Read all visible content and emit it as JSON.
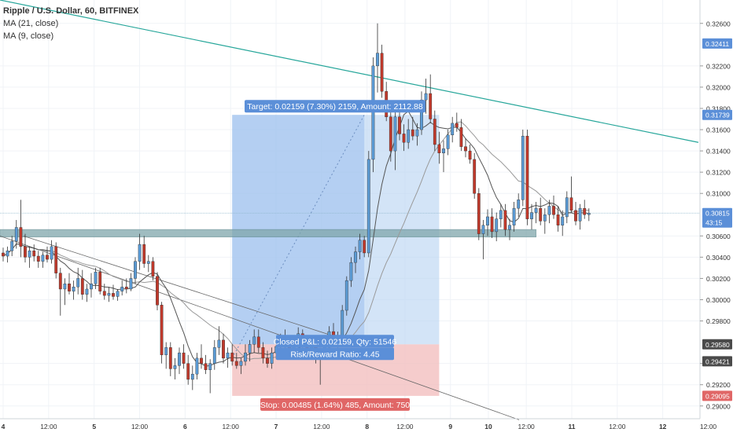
{
  "legend": {
    "symbol": "Ripple / U.S. Dollar, 60, BITFINEX",
    "ma21": "MA (21, close)",
    "ma9": "MA (9, close)"
  },
  "colors": {
    "up": "#5b9bd5",
    "down": "#c0392b",
    "wick": "#333333",
    "ma_light": "#9a9a9a",
    "ma_dark": "#555555",
    "trendline": "#26a69a",
    "zone": "#7fa6ab",
    "profit_fill": "#bcd5f2",
    "profit_fill_dark": "#8fb6ea",
    "loss_fill": "#f2bfbf",
    "axis_text": "#333333",
    "grid": "#f0f3f7"
  },
  "position": {
    "target_label": "Target: 0.02159 (7.30%) 2159, Amount: 2112.88",
    "closed_label": "Closed P&L: 0.02159, Qty: 51546",
    "rr_label": "Risk/Reward Ratio: 4.45",
    "stop_label": "Stop: 0.00485 (1.64%) 485, Amount: 750",
    "entry": 0.2958,
    "target": 0.31739,
    "stop": 0.29095
  },
  "chart_data": {
    "type": "candlestick",
    "title": "Ripple / U.S. Dollar, 60, BITFINEX",
    "ylim": [
      0.2888,
      0.3282
    ],
    "y_ticks": [
      "0.32600",
      "0.32200",
      "0.32000",
      "0.31800",
      "0.31600",
      "0.31400",
      "0.31200",
      "0.31000",
      "0.30600",
      "0.30400",
      "0.30200",
      "0.30000",
      "0.29800",
      "0.29400",
      "0.29200",
      "0.29000"
    ],
    "x_ticks": [
      "4",
      "12:00",
      "5",
      "12:00",
      "6",
      "12:00",
      "7",
      "12:00",
      "8",
      "12:00",
      "9",
      "10",
      "12:00",
      "11",
      "12:00",
      "12",
      "12:00"
    ],
    "price_badges": [
      {
        "value": "0.32411",
        "kind": "blue"
      },
      {
        "value": "0.31739",
        "kind": "blue"
      },
      {
        "value": "0.30815",
        "kind": "blue"
      },
      {
        "value": "43:15",
        "kind": "blue-sub"
      },
      {
        "value": "0.29580",
        "kind": "gray"
      },
      {
        "value": "0.29421",
        "kind": "gray"
      },
      {
        "value": "0.29095",
        "kind": "red"
      }
    ],
    "current_price": 0.30815,
    "series": [
      {
        "name": "MA (21, close)"
      },
      {
        "name": "MA (9, close)"
      }
    ],
    "candles": [
      [
        0.3044,
        0.3049,
        0.3036,
        0.3041
      ],
      [
        0.3041,
        0.305,
        0.3035,
        0.3046
      ],
      [
        0.3046,
        0.306,
        0.3041,
        0.3055
      ],
      [
        0.3055,
        0.3075,
        0.3048,
        0.3068
      ],
      [
        0.3068,
        0.3094,
        0.304,
        0.305
      ],
      [
        0.305,
        0.3062,
        0.3035,
        0.304
      ],
      [
        0.304,
        0.305,
        0.303,
        0.3046
      ],
      [
        0.3046,
        0.3052,
        0.3036,
        0.3041
      ],
      [
        0.3041,
        0.3046,
        0.303,
        0.3036
      ],
      [
        0.3036,
        0.3045,
        0.303,
        0.3042
      ],
      [
        0.3042,
        0.305,
        0.3035,
        0.3038
      ],
      [
        0.3038,
        0.3056,
        0.3034,
        0.305
      ],
      [
        0.305,
        0.3054,
        0.302,
        0.3025
      ],
      [
        0.3025,
        0.303,
        0.2985,
        0.301
      ],
      [
        0.301,
        0.302,
        0.2995,
        0.3015
      ],
      [
        0.3015,
        0.3025,
        0.3005,
        0.3008
      ],
      [
        0.3008,
        0.3018,
        0.3,
        0.3012
      ],
      [
        0.3012,
        0.303,
        0.3005,
        0.302
      ],
      [
        0.302,
        0.3028,
        0.3,
        0.3005
      ],
      [
        0.3005,
        0.3015,
        0.2998,
        0.301
      ],
      [
        0.301,
        0.3025,
        0.3002,
        0.3015
      ],
      [
        0.3015,
        0.303,
        0.301,
        0.3026
      ],
      [
        0.3026,
        0.303,
        0.3005,
        0.3008
      ],
      [
        0.3008,
        0.3015,
        0.3,
        0.3004
      ],
      [
        0.3004,
        0.3012,
        0.2998,
        0.3006
      ],
      [
        0.3006,
        0.3014,
        0.3,
        0.3003
      ],
      [
        0.3003,
        0.301,
        0.2999,
        0.3008
      ],
      [
        0.3008,
        0.3018,
        0.3004,
        0.3012
      ],
      [
        0.3012,
        0.302,
        0.3006,
        0.301
      ],
      [
        0.301,
        0.3025,
        0.3008,
        0.302
      ],
      [
        0.302,
        0.304,
        0.3015,
        0.3036
      ],
      [
        0.3036,
        0.3062,
        0.3028,
        0.3052
      ],
      [
        0.3052,
        0.306,
        0.303,
        0.3034
      ],
      [
        0.3034,
        0.3042,
        0.3026,
        0.3036
      ],
      [
        0.3036,
        0.304,
        0.3018,
        0.3022
      ],
      [
        0.3022,
        0.3026,
        0.299,
        0.2995
      ],
      [
        0.2995,
        0.2998,
        0.294,
        0.2948
      ],
      [
        0.2948,
        0.296,
        0.2935,
        0.2955
      ],
      [
        0.2955,
        0.296,
        0.2928,
        0.2935
      ],
      [
        0.2935,
        0.2945,
        0.2925,
        0.2938
      ],
      [
        0.2938,
        0.2955,
        0.293,
        0.295
      ],
      [
        0.295,
        0.2958,
        0.2935,
        0.294
      ],
      [
        0.294,
        0.2948,
        0.292,
        0.2925
      ],
      [
        0.2925,
        0.2938,
        0.2915,
        0.293
      ],
      [
        0.293,
        0.295,
        0.2925,
        0.2945
      ],
      [
        0.2945,
        0.2958,
        0.2935,
        0.294
      ],
      [
        0.294,
        0.2948,
        0.293,
        0.2934
      ],
      [
        0.2934,
        0.2944,
        0.2912,
        0.294
      ],
      [
        0.294,
        0.2962,
        0.2934,
        0.2955
      ],
      [
        0.2955,
        0.2975,
        0.2948,
        0.2962
      ],
      [
        0.2962,
        0.2968,
        0.294,
        0.2945
      ],
      [
        0.2945,
        0.2955,
        0.2936,
        0.295
      ],
      [
        0.295,
        0.2958,
        0.2938,
        0.2942
      ],
      [
        0.2942,
        0.295,
        0.2935,
        0.2938
      ],
      [
        0.2938,
        0.2945,
        0.293,
        0.2942
      ],
      [
        0.2942,
        0.2958,
        0.2938,
        0.295
      ],
      [
        0.295,
        0.2962,
        0.2942,
        0.2958
      ],
      [
        0.2958,
        0.2972,
        0.295,
        0.2965
      ],
      [
        0.2965,
        0.2972,
        0.295,
        0.2955
      ],
      [
        0.2955,
        0.296,
        0.294,
        0.2945
      ],
      [
        0.2945,
        0.2952,
        0.2936,
        0.294
      ],
      [
        0.294,
        0.2955,
        0.2935,
        0.295
      ],
      [
        0.295,
        0.2962,
        0.2944,
        0.2956
      ],
      [
        0.2956,
        0.2968,
        0.295,
        0.2962
      ],
      [
        0.2962,
        0.2972,
        0.2952,
        0.2958
      ],
      [
        0.2958,
        0.2966,
        0.2948,
        0.2952
      ],
      [
        0.2952,
        0.2964,
        0.2946,
        0.296
      ],
      [
        0.296,
        0.2974,
        0.2955,
        0.2968
      ],
      [
        0.2968,
        0.2972,
        0.2955,
        0.296
      ],
      [
        0.296,
        0.2966,
        0.2948,
        0.2952
      ],
      [
        0.2952,
        0.296,
        0.2944,
        0.2956
      ],
      [
        0.2956,
        0.2962,
        0.294,
        0.2945
      ],
      [
        0.2945,
        0.2955,
        0.292,
        0.295
      ],
      [
        0.295,
        0.2965,
        0.2945,
        0.2962
      ],
      [
        0.2962,
        0.2975,
        0.2955,
        0.297
      ],
      [
        0.297,
        0.2978,
        0.2958,
        0.2962
      ],
      [
        0.2962,
        0.297,
        0.2955,
        0.2966
      ],
      [
        0.2966,
        0.2995,
        0.296,
        0.299
      ],
      [
        0.299,
        0.3022,
        0.2985,
        0.3018
      ],
      [
        0.3018,
        0.304,
        0.3012,
        0.3035
      ],
      [
        0.3035,
        0.305,
        0.3025,
        0.3045
      ],
      [
        0.3045,
        0.3062,
        0.3038,
        0.3056
      ],
      [
        0.3056,
        0.306,
        0.304,
        0.3044
      ],
      [
        0.3044,
        0.314,
        0.304,
        0.3132
      ],
      [
        0.3132,
        0.3228,
        0.312,
        0.322
      ],
      [
        0.322,
        0.326,
        0.3195,
        0.3232
      ],
      [
        0.3232,
        0.324,
        0.319,
        0.3196
      ],
      [
        0.3196,
        0.3205,
        0.3168,
        0.3172
      ],
      [
        0.3172,
        0.318,
        0.313,
        0.314
      ],
      [
        0.314,
        0.318,
        0.3122,
        0.3172
      ],
      [
        0.3172,
        0.3186,
        0.315,
        0.3156
      ],
      [
        0.3156,
        0.3165,
        0.314,
        0.3148
      ],
      [
        0.3148,
        0.317,
        0.3142,
        0.316
      ],
      [
        0.316,
        0.3172,
        0.315,
        0.3154
      ],
      [
        0.3154,
        0.3166,
        0.3145,
        0.316
      ],
      [
        0.316,
        0.3196,
        0.3155,
        0.3188
      ],
      [
        0.3188,
        0.3208,
        0.3175,
        0.3194
      ],
      [
        0.3194,
        0.3212,
        0.3166,
        0.317
      ],
      [
        0.317,
        0.3178,
        0.314,
        0.3146
      ],
      [
        0.3146,
        0.3158,
        0.3128,
        0.3138
      ],
      [
        0.3138,
        0.315,
        0.312,
        0.3142
      ],
      [
        0.3142,
        0.316,
        0.3136,
        0.3155
      ],
      [
        0.3155,
        0.3172,
        0.3148,
        0.3166
      ],
      [
        0.3166,
        0.3176,
        0.3158,
        0.3162
      ],
      [
        0.3162,
        0.317,
        0.314,
        0.3144
      ],
      [
        0.3144,
        0.3152,
        0.3134,
        0.314
      ],
      [
        0.314,
        0.3146,
        0.3128,
        0.3132
      ],
      [
        0.3132,
        0.3138,
        0.3095,
        0.31
      ],
      [
        0.31,
        0.3105,
        0.3056,
        0.3062
      ],
      [
        0.3062,
        0.3075,
        0.3038,
        0.307
      ],
      [
        0.307,
        0.3085,
        0.306,
        0.3078
      ],
      [
        0.3078,
        0.3086,
        0.3058,
        0.3064
      ],
      [
        0.3064,
        0.3082,
        0.3055,
        0.3076
      ],
      [
        0.3076,
        0.309,
        0.3068,
        0.3084
      ],
      [
        0.3084,
        0.309,
        0.306,
        0.3066
      ],
      [
        0.3066,
        0.3076,
        0.3056,
        0.307
      ],
      [
        0.307,
        0.3092,
        0.3064,
        0.3086
      ],
      [
        0.3086,
        0.31,
        0.3078,
        0.3094
      ],
      [
        0.3094,
        0.316,
        0.3088,
        0.3154
      ],
      [
        0.3154,
        0.316,
        0.307,
        0.3076
      ],
      [
        0.3076,
        0.309,
        0.3066,
        0.3082
      ],
      [
        0.3082,
        0.3092,
        0.3072,
        0.3086
      ],
      [
        0.3086,
        0.3096,
        0.307,
        0.3074
      ],
      [
        0.3074,
        0.3086,
        0.3062,
        0.308
      ],
      [
        0.308,
        0.3094,
        0.3072,
        0.3088
      ],
      [
        0.3088,
        0.3098,
        0.3076,
        0.308
      ],
      [
        0.308,
        0.3088,
        0.3064,
        0.307
      ],
      [
        0.307,
        0.3084,
        0.306,
        0.3078
      ],
      [
        0.3078,
        0.3102,
        0.3072,
        0.3096
      ],
      [
        0.3096,
        0.3116,
        0.3082,
        0.3084
      ],
      [
        0.3084,
        0.3092,
        0.307,
        0.3074
      ],
      [
        0.3074,
        0.309,
        0.3066,
        0.3086
      ],
      [
        0.3086,
        0.3094,
        0.3076,
        0.308
      ],
      [
        0.308,
        0.3086,
        0.3074,
        0.30815
      ]
    ]
  }
}
